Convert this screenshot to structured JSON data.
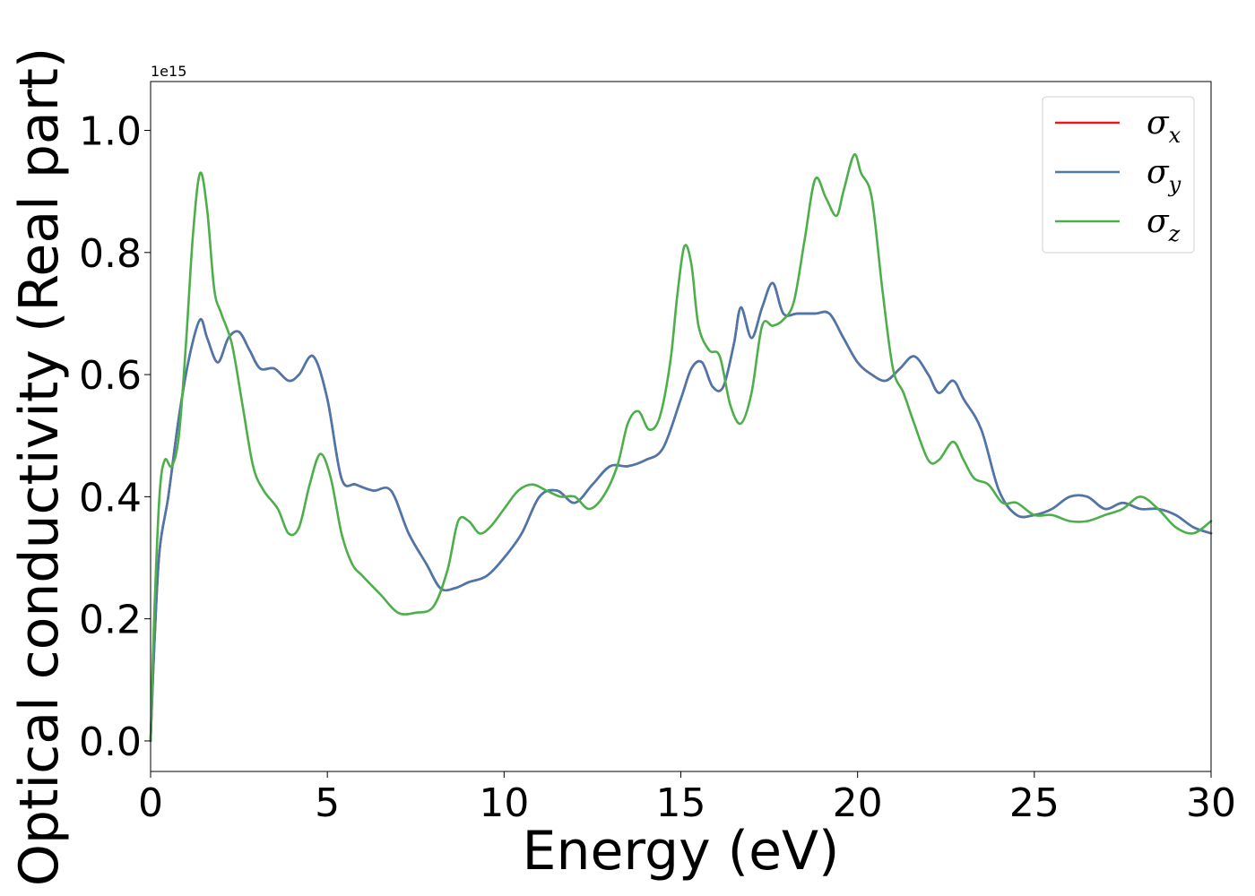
{
  "chart_data": {
    "type": "line",
    "xlabel": "Energy (eV)",
    "ylabel": "Optical conductivity (Real part)",
    "y_offset_label": "1e15",
    "xlim": [
      0,
      30
    ],
    "ylim": [
      -0.05,
      1.08
    ],
    "xticks": [
      0,
      5,
      10,
      15,
      20,
      25,
      30
    ],
    "xtick_labels": [
      "0",
      "5",
      "10",
      "15",
      "20",
      "25",
      "30"
    ],
    "yticks": [
      0.0,
      0.2,
      0.4,
      0.6,
      0.8,
      1.0
    ],
    "ytick_labels": [
      "0.0",
      "0.2",
      "0.4",
      "0.6",
      "0.8",
      "1.0"
    ],
    "grid": false,
    "legend_position": "top-right",
    "series": [
      {
        "name": "σx",
        "legend_base": "σ",
        "legend_sub": "x",
        "color": "#e41a1c",
        "x": [
          0,
          0.1,
          0.25,
          0.5,
          0.8,
          1.1,
          1.4,
          1.6,
          1.9,
          2.2,
          2.5,
          2.8,
          3.1,
          3.5,
          3.9,
          4.2,
          4.6,
          5.0,
          5.4,
          5.8,
          6.3,
          6.8,
          7.3,
          7.8,
          8.2,
          8.6,
          9.0,
          9.5,
          10.0,
          10.5,
          11.0,
          11.5,
          12.0,
          12.5,
          13.0,
          13.5,
          14.0,
          14.5,
          15.0,
          15.3,
          15.6,
          15.9,
          16.2,
          16.5,
          16.7,
          17.0,
          17.3,
          17.6,
          17.9,
          18.3,
          18.8,
          19.2,
          19.6,
          20.0,
          20.4,
          20.8,
          21.2,
          21.6,
          22.0,
          22.3,
          22.7,
          23.0,
          23.5,
          24.0,
          24.5,
          25.0,
          25.5,
          26.0,
          26.5,
          27.0,
          27.5,
          28.0,
          28.5,
          29.0,
          29.5,
          30.0
        ],
        "y": [
          0.0,
          0.15,
          0.31,
          0.4,
          0.53,
          0.63,
          0.69,
          0.66,
          0.62,
          0.66,
          0.67,
          0.64,
          0.61,
          0.61,
          0.59,
          0.6,
          0.63,
          0.56,
          0.43,
          0.42,
          0.41,
          0.41,
          0.34,
          0.29,
          0.25,
          0.25,
          0.26,
          0.27,
          0.3,
          0.34,
          0.4,
          0.41,
          0.39,
          0.42,
          0.45,
          0.45,
          0.46,
          0.48,
          0.56,
          0.61,
          0.62,
          0.58,
          0.58,
          0.65,
          0.71,
          0.66,
          0.71,
          0.75,
          0.7,
          0.7,
          0.7,
          0.7,
          0.66,
          0.62,
          0.6,
          0.59,
          0.61,
          0.63,
          0.6,
          0.57,
          0.59,
          0.56,
          0.51,
          0.41,
          0.37,
          0.37,
          0.38,
          0.4,
          0.4,
          0.38,
          0.39,
          0.38,
          0.38,
          0.37,
          0.35,
          0.34
        ]
      },
      {
        "name": "σy",
        "legend_base": "σ",
        "legend_sub": "y",
        "color": "#4a78ac",
        "x": [
          0,
          0.1,
          0.25,
          0.5,
          0.8,
          1.1,
          1.4,
          1.6,
          1.9,
          2.2,
          2.5,
          2.8,
          3.1,
          3.5,
          3.9,
          4.2,
          4.6,
          5.0,
          5.4,
          5.8,
          6.3,
          6.8,
          7.3,
          7.8,
          8.2,
          8.6,
          9.0,
          9.5,
          10.0,
          10.5,
          11.0,
          11.5,
          12.0,
          12.5,
          13.0,
          13.5,
          14.0,
          14.5,
          15.0,
          15.3,
          15.6,
          15.9,
          16.2,
          16.5,
          16.7,
          17.0,
          17.3,
          17.6,
          17.9,
          18.3,
          18.8,
          19.2,
          19.6,
          20.0,
          20.4,
          20.8,
          21.2,
          21.6,
          22.0,
          22.3,
          22.7,
          23.0,
          23.5,
          24.0,
          24.5,
          25.0,
          25.5,
          26.0,
          26.5,
          27.0,
          27.5,
          28.0,
          28.5,
          29.0,
          29.5,
          30.0
        ],
        "y": [
          0.0,
          0.15,
          0.31,
          0.4,
          0.53,
          0.63,
          0.69,
          0.66,
          0.62,
          0.66,
          0.67,
          0.64,
          0.61,
          0.61,
          0.59,
          0.6,
          0.63,
          0.56,
          0.43,
          0.42,
          0.41,
          0.41,
          0.34,
          0.29,
          0.25,
          0.25,
          0.26,
          0.27,
          0.3,
          0.34,
          0.4,
          0.41,
          0.39,
          0.42,
          0.45,
          0.45,
          0.46,
          0.48,
          0.56,
          0.61,
          0.62,
          0.58,
          0.58,
          0.65,
          0.71,
          0.66,
          0.71,
          0.75,
          0.7,
          0.7,
          0.7,
          0.7,
          0.66,
          0.62,
          0.6,
          0.59,
          0.61,
          0.63,
          0.6,
          0.57,
          0.59,
          0.56,
          0.51,
          0.41,
          0.37,
          0.37,
          0.38,
          0.4,
          0.4,
          0.38,
          0.39,
          0.38,
          0.38,
          0.37,
          0.35,
          0.34
        ]
      },
      {
        "name": "σz",
        "legend_base": "σ",
        "legend_sub": "z",
        "color": "#4daf4a",
        "x": [
          0,
          0.1,
          0.25,
          0.4,
          0.6,
          0.8,
          1.0,
          1.2,
          1.4,
          1.6,
          1.8,
          2.0,
          2.3,
          2.6,
          2.9,
          3.2,
          3.6,
          3.9,
          4.2,
          4.5,
          4.8,
          5.1,
          5.4,
          5.7,
          6.0,
          6.5,
          7.0,
          7.5,
          8.0,
          8.4,
          8.7,
          9.0,
          9.3,
          9.6,
          10.0,
          10.4,
          10.8,
          11.2,
          11.6,
          12.0,
          12.4,
          12.8,
          13.2,
          13.5,
          13.8,
          14.1,
          14.4,
          14.7,
          14.9,
          15.1,
          15.3,
          15.5,
          15.8,
          16.1,
          16.4,
          16.7,
          17.0,
          17.3,
          17.6,
          17.9,
          18.2,
          18.5,
          18.8,
          19.1,
          19.4,
          19.6,
          19.9,
          20.1,
          20.4,
          20.7,
          21.0,
          21.3,
          21.6,
          22.0,
          22.3,
          22.7,
          23.0,
          23.3,
          23.7,
          24.1,
          24.5,
          25.0,
          25.5,
          26.0,
          26.5,
          27.0,
          27.5,
          28.0,
          28.5,
          29.0,
          29.5,
          30.0
        ],
        "y": [
          0.0,
          0.2,
          0.4,
          0.46,
          0.45,
          0.5,
          0.65,
          0.83,
          0.93,
          0.87,
          0.74,
          0.7,
          0.65,
          0.55,
          0.45,
          0.41,
          0.38,
          0.34,
          0.35,
          0.42,
          0.47,
          0.43,
          0.34,
          0.29,
          0.27,
          0.24,
          0.21,
          0.21,
          0.22,
          0.28,
          0.36,
          0.36,
          0.34,
          0.35,
          0.38,
          0.41,
          0.42,
          0.41,
          0.4,
          0.4,
          0.38,
          0.4,
          0.45,
          0.52,
          0.54,
          0.51,
          0.53,
          0.62,
          0.73,
          0.81,
          0.78,
          0.68,
          0.64,
          0.63,
          0.55,
          0.52,
          0.57,
          0.68,
          0.68,
          0.69,
          0.72,
          0.82,
          0.92,
          0.89,
          0.86,
          0.9,
          0.96,
          0.93,
          0.89,
          0.74,
          0.61,
          0.57,
          0.52,
          0.46,
          0.46,
          0.49,
          0.46,
          0.43,
          0.42,
          0.39,
          0.39,
          0.37,
          0.37,
          0.36,
          0.36,
          0.37,
          0.38,
          0.4,
          0.38,
          0.35,
          0.34,
          0.36
        ]
      }
    ]
  }
}
